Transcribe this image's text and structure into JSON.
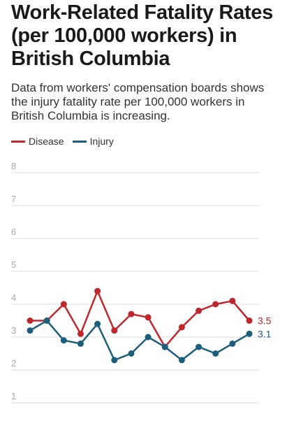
{
  "header": {
    "title": "Work-Related Fatality Rates (per 100,000 workers) in British Columbia",
    "subtitle": "Data from workers' compensation boards shows the injury fatality rate per 100,000 workers in British Columbia is increasing."
  },
  "colors": {
    "disease": "#c0272d",
    "injury": "#1c5f7c",
    "grid": "#dddddd",
    "tick_label": "#aaaaaa"
  },
  "chart_data": {
    "type": "line",
    "title": "Work-Related Fatality Rates (per 100,000 workers) in British Columbia",
    "subtitle": "Data from workers' compensation boards shows the injury fatality rate per 100,000 workers in British Columbia is increasing.",
    "xlabel": "",
    "ylabel": "",
    "ylim": [
      1,
      8
    ],
    "yticks": [
      "1",
      "2",
      "3",
      "4",
      "5",
      "6",
      "7",
      "8"
    ],
    "grid": true,
    "legend_position": "top-left",
    "series": [
      {
        "name": "Disease",
        "color": "#c0272d",
        "values": [
          3.5,
          3.5,
          4.0,
          3.1,
          4.4,
          3.2,
          3.7,
          3.6,
          2.7,
          3.3,
          3.8,
          4.0,
          4.1,
          3.5
        ],
        "end_label": "3.5"
      },
      {
        "name": "Injury",
        "color": "#1c5f7c",
        "values": [
          3.2,
          3.5,
          2.9,
          2.8,
          3.4,
          2.3,
          2.5,
          3.0,
          2.7,
          2.3,
          2.7,
          2.5,
          2.8,
          3.1
        ],
        "end_label": "3.1"
      }
    ]
  }
}
